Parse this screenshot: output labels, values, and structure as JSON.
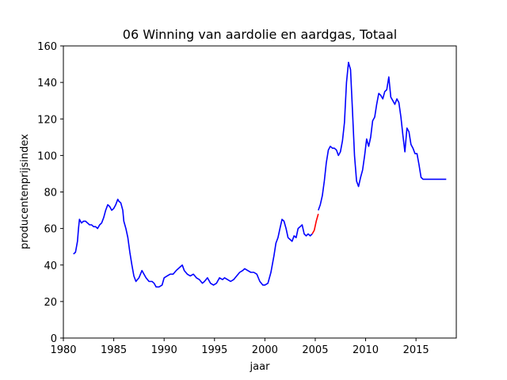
{
  "chart_data": {
    "type": "line",
    "title": "06 Winning van aardolie en aardgas, Totaal",
    "xlabel": "jaar",
    "ylabel": "producentenprijsindex",
    "xlim": [
      1980,
      2019
    ],
    "ylim": [
      0,
      160
    ],
    "xticks": [
      1980,
      1985,
      1990,
      1995,
      2000,
      2005,
      2010,
      2015
    ],
    "yticks": [
      0,
      20,
      40,
      60,
      80,
      100,
      120,
      140,
      160
    ],
    "grid": false,
    "series": [
      {
        "color": "#0000ff",
        "x": [
          1981.0,
          1981.2,
          1981.4,
          1981.5,
          1981.6,
          1981.8,
          1982.0,
          1982.2,
          1982.4,
          1982.6,
          1982.8,
          1983.0,
          1983.2,
          1983.4,
          1983.6,
          1983.8,
          1984.0,
          1984.2,
          1984.4,
          1984.6,
          1984.8,
          1985.0,
          1985.2,
          1985.4,
          1985.5,
          1985.7,
          1985.9,
          1986.0,
          1986.2,
          1986.4,
          1986.6,
          1986.8,
          1987.0,
          1987.2,
          1987.5,
          1987.8,
          1988.0,
          1988.2,
          1988.5,
          1988.8,
          1989.0,
          1989.2,
          1989.5,
          1989.8,
          1990.0,
          1990.3,
          1990.6,
          1990.9,
          1991.2,
          1991.4,
          1991.6,
          1991.8,
          1992.0,
          1992.3,
          1992.6,
          1992.9,
          1993.2,
          1993.5,
          1993.8,
          1994.0,
          1994.3,
          1994.6,
          1994.9,
          1995.2,
          1995.5,
          1995.8,
          1996.0,
          1996.3,
          1996.6,
          1996.9,
          1997.2,
          1997.5,
          1997.8,
          1998.0,
          1998.3,
          1998.6,
          1998.9,
          1999.2,
          1999.5,
          1999.8,
          2000.0,
          2000.3,
          2000.6,
          2000.9,
          2001.1,
          2001.3,
          2001.5,
          2001.7,
          2001.9,
          2002.1,
          2002.3,
          2002.5,
          2002.7,
          2002.9,
          2003.1,
          2003.3,
          2003.5,
          2003.7,
          2003.9,
          2004.1,
          2004.3,
          2004.5,
          2004.7
        ],
        "y": [
          46,
          47,
          53,
          60,
          65,
          63,
          64,
          64,
          63,
          62,
          62,
          61,
          61,
          60,
          62,
          63,
          66,
          70,
          73,
          72,
          70,
          71,
          73,
          76,
          75,
          74,
          70,
          64,
          60,
          55,
          47,
          40,
          34,
          31,
          33,
          37,
          35,
          33,
          31,
          31,
          30,
          28,
          28,
          29,
          33,
          34,
          35,
          35,
          37,
          38,
          39,
          40,
          37,
          35,
          34,
          35,
          33,
          32,
          30,
          31,
          33,
          30,
          29,
          30,
          33,
          32,
          33,
          32,
          31,
          32,
          34,
          36,
          37,
          38,
          37,
          36,
          36,
          35,
          31,
          29,
          29,
          30,
          36,
          45,
          52,
          55,
          60,
          65,
          64,
          60,
          55,
          54,
          53,
          56,
          55,
          60,
          61,
          62,
          57,
          56,
          57,
          56,
          57
        ]
      },
      {
        "color": "#ff0000",
        "x": [
          2004.7,
          2004.9,
          2005.1,
          2005.3
        ],
        "y": [
          57,
          59,
          64,
          68
        ]
      },
      {
        "color": "#0000ff",
        "x": [
          2005.3,
          2005.5,
          2005.7,
          2005.9,
          2006.1,
          2006.3,
          2006.5,
          2006.7,
          2006.9,
          2007.1,
          2007.3,
          2007.5,
          2007.7,
          2007.9,
          2008.1,
          2008.3,
          2008.5,
          2008.7,
          2008.9,
          2009.1,
          2009.3,
          2009.5,
          2009.7,
          2009.9,
          2010.1,
          2010.3,
          2010.5,
          2010.7,
          2010.9,
          2011.1,
          2011.3,
          2011.5,
          2011.7,
          2011.9,
          2012.1,
          2012.3,
          2012.5,
          2012.7,
          2012.9,
          2013.1,
          2013.3,
          2013.5,
          2013.7,
          2013.9,
          2014.1,
          2014.3,
          2014.5,
          2014.7,
          2014.9,
          2015.1,
          2015.3,
          2015.5,
          2015.7,
          2015.9,
          2016.1,
          2016.5,
          2017.0,
          2017.5,
          2018.0
        ],
        "y": [
          70,
          73,
          78,
          86,
          96,
          103,
          105,
          104,
          104,
          103,
          100,
          102,
          108,
          118,
          140,
          151,
          147,
          124,
          100,
          86,
          83,
          88,
          92,
          100,
          109,
          105,
          110,
          119,
          121,
          128,
          134,
          133,
          131,
          135,
          136,
          143,
          132,
          130,
          128,
          131,
          129,
          121,
          111,
          102,
          115,
          113,
          106,
          104,
          101,
          101,
          95,
          88,
          87,
          87,
          87,
          87,
          87,
          87,
          87
        ]
      }
    ]
  }
}
